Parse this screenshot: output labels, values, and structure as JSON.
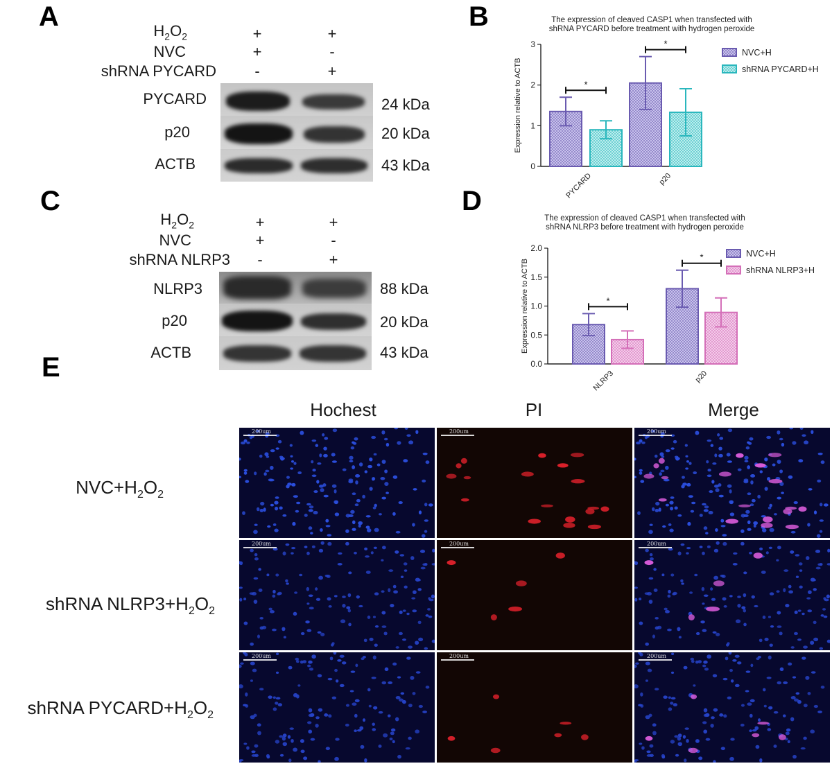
{
  "panels": {
    "A": {
      "letter": "A",
      "conditions": [
        {
          "label": "H",
          "sub": "2",
          "label2": "O",
          "sub2": "2",
          "signs": [
            "+",
            "+"
          ]
        },
        {
          "label": "NVC",
          "signs": [
            "+",
            "-"
          ]
        },
        {
          "label": "shRNA PYCARD",
          "signs": [
            "-",
            "+"
          ]
        }
      ],
      "bands": [
        {
          "name": "PYCARD",
          "kda": "24 kDa"
        },
        {
          "name": "p20",
          "kda": "20 kDa"
        },
        {
          "name": "ACTB",
          "kda": "43 kDa"
        }
      ]
    },
    "C": {
      "letter": "C",
      "conditions": [
        {
          "label": "H",
          "sub": "2",
          "label2": "O",
          "sub2": "2",
          "signs": [
            "+",
            "+"
          ]
        },
        {
          "label": "NVC",
          "signs": [
            "+",
            "-"
          ]
        },
        {
          "label": "shRNA NLRP3",
          "signs": [
            "-",
            "+"
          ]
        }
      ],
      "bands": [
        {
          "name": "NLRP3",
          "kda": "88 kDa"
        },
        {
          "name": "p20",
          "kda": "20 kDa"
        },
        {
          "name": "ACTB",
          "kda": "43 kDa"
        }
      ]
    },
    "E": {
      "letter": "E",
      "columns": [
        "Hochest",
        "PI",
        "Merge"
      ],
      "rows": [
        {
          "prefix": "NVC+H",
          "sub": "2",
          "mid": "O",
          "sub2": "2"
        },
        {
          "prefix": "shRNA NLRP3+H",
          "sub": "2",
          "mid": "O",
          "sub2": "2"
        },
        {
          "prefix": "shRNA PYCARD+H",
          "sub": "2",
          "mid": "O",
          "sub2": "2"
        }
      ],
      "scale_label": "200um"
    }
  },
  "chart_data": [
    {
      "letter": "B",
      "type": "bar",
      "title": [
        "The expression of cleaved CASP1 when transfected with",
        "shRNA PYCARD before treatment with hydrogen peroxide"
      ],
      "ylabel": "Expression relative to ACTB",
      "xlabel": "",
      "categories": [
        "PYCARD",
        "p20"
      ],
      "ylim": [
        0,
        3
      ],
      "yticks": [
        0,
        1,
        2,
        3
      ],
      "series": [
        {
          "name": "NVC+H",
          "values": [
            1.35,
            2.05
          ],
          "err": [
            0.35,
            0.65
          ],
          "color": "#6a5bb0",
          "fill": "#c9c3ec"
        },
        {
          "name": "shRNA PYCARD+H",
          "values": [
            0.9,
            1.33
          ],
          "err": [
            0.22,
            0.58
          ],
          "color": "#2ab7bd",
          "fill": "#bfeeee"
        }
      ],
      "significance": [
        "*",
        "*"
      ],
      "legend": "top-right"
    },
    {
      "letter": "D",
      "type": "bar",
      "title": [
        "The expression of cleaved CASP1 when transfected with",
        "shRNA NLRP3 before treatment with hydrogen peroxide"
      ],
      "ylabel": "Expression relative to ACTB",
      "xlabel": "",
      "categories": [
        "NLRP3",
        "p20"
      ],
      "ylim": [
        0,
        2.0
      ],
      "yticks": [
        0,
        0.5,
        1.0,
        1.5,
        2.0
      ],
      "ytick_labels": [
        "0.0",
        "0.5",
        "1.0",
        "1.5",
        "2.0"
      ],
      "series": [
        {
          "name": "NVC+H",
          "values": [
            0.68,
            1.3
          ],
          "err": [
            0.19,
            0.32
          ],
          "color": "#6a5bb0",
          "fill": "#c9c3ec"
        },
        {
          "name": "shRNA NLRP3+H",
          "values": [
            0.42,
            0.89
          ],
          "err": [
            0.15,
            0.25
          ],
          "color": "#d46fb8",
          "fill": "#f3cdea"
        }
      ],
      "significance": [
        "*",
        "*"
      ],
      "legend": "top-right"
    }
  ]
}
